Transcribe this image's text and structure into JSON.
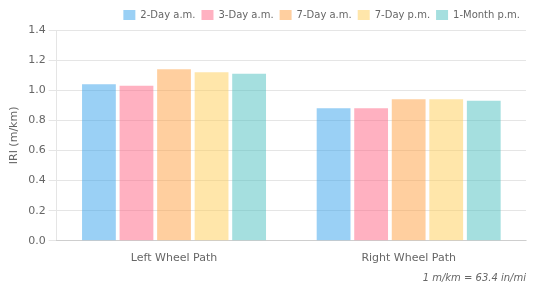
{
  "chart_data": {
    "type": "bar",
    "categories": [
      "Left Wheel Path",
      "Right Wheel Path"
    ],
    "series": [
      {
        "name": "2-Day a.m.",
        "values": [
          1.04,
          0.88
        ]
      },
      {
        "name": "3-Day a.m.",
        "values": [
          1.03,
          0.88
        ]
      },
      {
        "name": "7-Day a.m.",
        "values": [
          1.14,
          0.94
        ]
      },
      {
        "name": "7-Day p.m.",
        "values": [
          1.12,
          0.94
        ]
      },
      {
        "name": "1-Month p.m.",
        "values": [
          1.11,
          0.93
        ]
      }
    ],
    "ylabel": "IRI (m/km)",
    "ylim": [
      0,
      1.4
    ],
    "yticks": [
      {
        "value": 0,
        "label": "0.0"
      },
      0.2,
      0.4,
      0.6,
      0.8,
      {
        "value": 1,
        "label": "1.0"
      },
      1.2,
      1.4
    ],
    "grid": true,
    "legend": "upper right",
    "annotation": "1 m/km = 63.4 in/mi"
  }
}
